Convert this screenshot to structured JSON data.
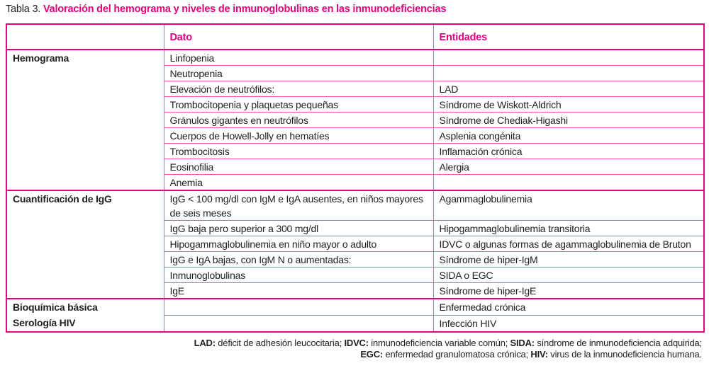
{
  "accent_color": "#e6007e",
  "title": {
    "prefix": "Tabla 3. ",
    "text": "Valoración del hemograma y niveles de inmunoglobulinas en las inmunodeficiencias"
  },
  "table": {
    "headers": {
      "category": "",
      "dato": "Dato",
      "entidades": "Entidades"
    },
    "sections": [
      {
        "category_lines": [
          "Hemograma"
        ],
        "rows": [
          {
            "dato": "Linfopenia",
            "entidad": ""
          },
          {
            "dato": "Neutropenia",
            "entidad": ""
          },
          {
            "dato": "Elevación de neutrófilos:",
            "entidad": "LAD"
          },
          {
            "dato": "Trombocitopenia y plaquetas pequeñas",
            "entidad": "Síndrome de Wiskott-Aldrich"
          },
          {
            "dato": "Gránulos gigantes en neutrófilos",
            "entidad": "Síndrome de Chediak-Higashi"
          },
          {
            "dato": "Cuerpos de Howell-Jolly en hematíes",
            "entidad": "Asplenia congénita"
          },
          {
            "dato": "Trombocitosis",
            "entidad": "Inflamación crónica"
          },
          {
            "dato": "Eosinofilia",
            "entidad": "Alergia"
          },
          {
            "dato": "Anemia",
            "entidad": ""
          }
        ]
      },
      {
        "category_lines": [
          "Cuantificación de IgG"
        ],
        "rows": [
          {
            "dato": "IgG < 100 mg/dl con IgM e IgA ausentes, en niños mayores de seis meses",
            "entidad": "Agammaglobulinemia"
          },
          {
            "dato": "IgG baja pero superior a 300 mg/dl",
            "entidad": "Hipogammaglobulinemia transitoria"
          },
          {
            "dato": "Hipogammaglobulinemia en niño mayor o adulto",
            "entidad": "IDVC o algunas formas de agammaglobulinemia de Bruton"
          },
          {
            "dato": "IgG e IgA bajas, con IgM N o aumentadas:",
            "entidad": "Síndrome de hiper-IgM"
          },
          {
            "dato": "Inmunoglobulinas",
            "entidad": "SIDA o EGC"
          },
          {
            "dato": "IgE",
            "entidad": "Síndrome de hiper-IgE"
          }
        ]
      },
      {
        "category_lines": [
          "Bioquímica básica",
          "Serología HIV"
        ],
        "rows": [
          {
            "dato": "",
            "entidad": "Enfermedad crónica"
          },
          {
            "dato": "",
            "entidad": "Infección HIV"
          }
        ]
      }
    ]
  },
  "footnote": {
    "lines": [
      [
        {
          "b": "LAD:",
          "t": " déficit de adhesión leucocitaria; "
        },
        {
          "b": "IDVC:",
          "t": " inmunodeficiencia variable común; "
        },
        {
          "b": "SIDA:",
          "t": " síndrome de inmunodeficiencia adquirida;"
        }
      ],
      [
        {
          "b": "EGC:",
          "t": " enfermedad granulomatosa crónica; "
        },
        {
          "b": "HIV:",
          "t": " virus de la inmunodeficiencia humana."
        }
      ]
    ]
  }
}
